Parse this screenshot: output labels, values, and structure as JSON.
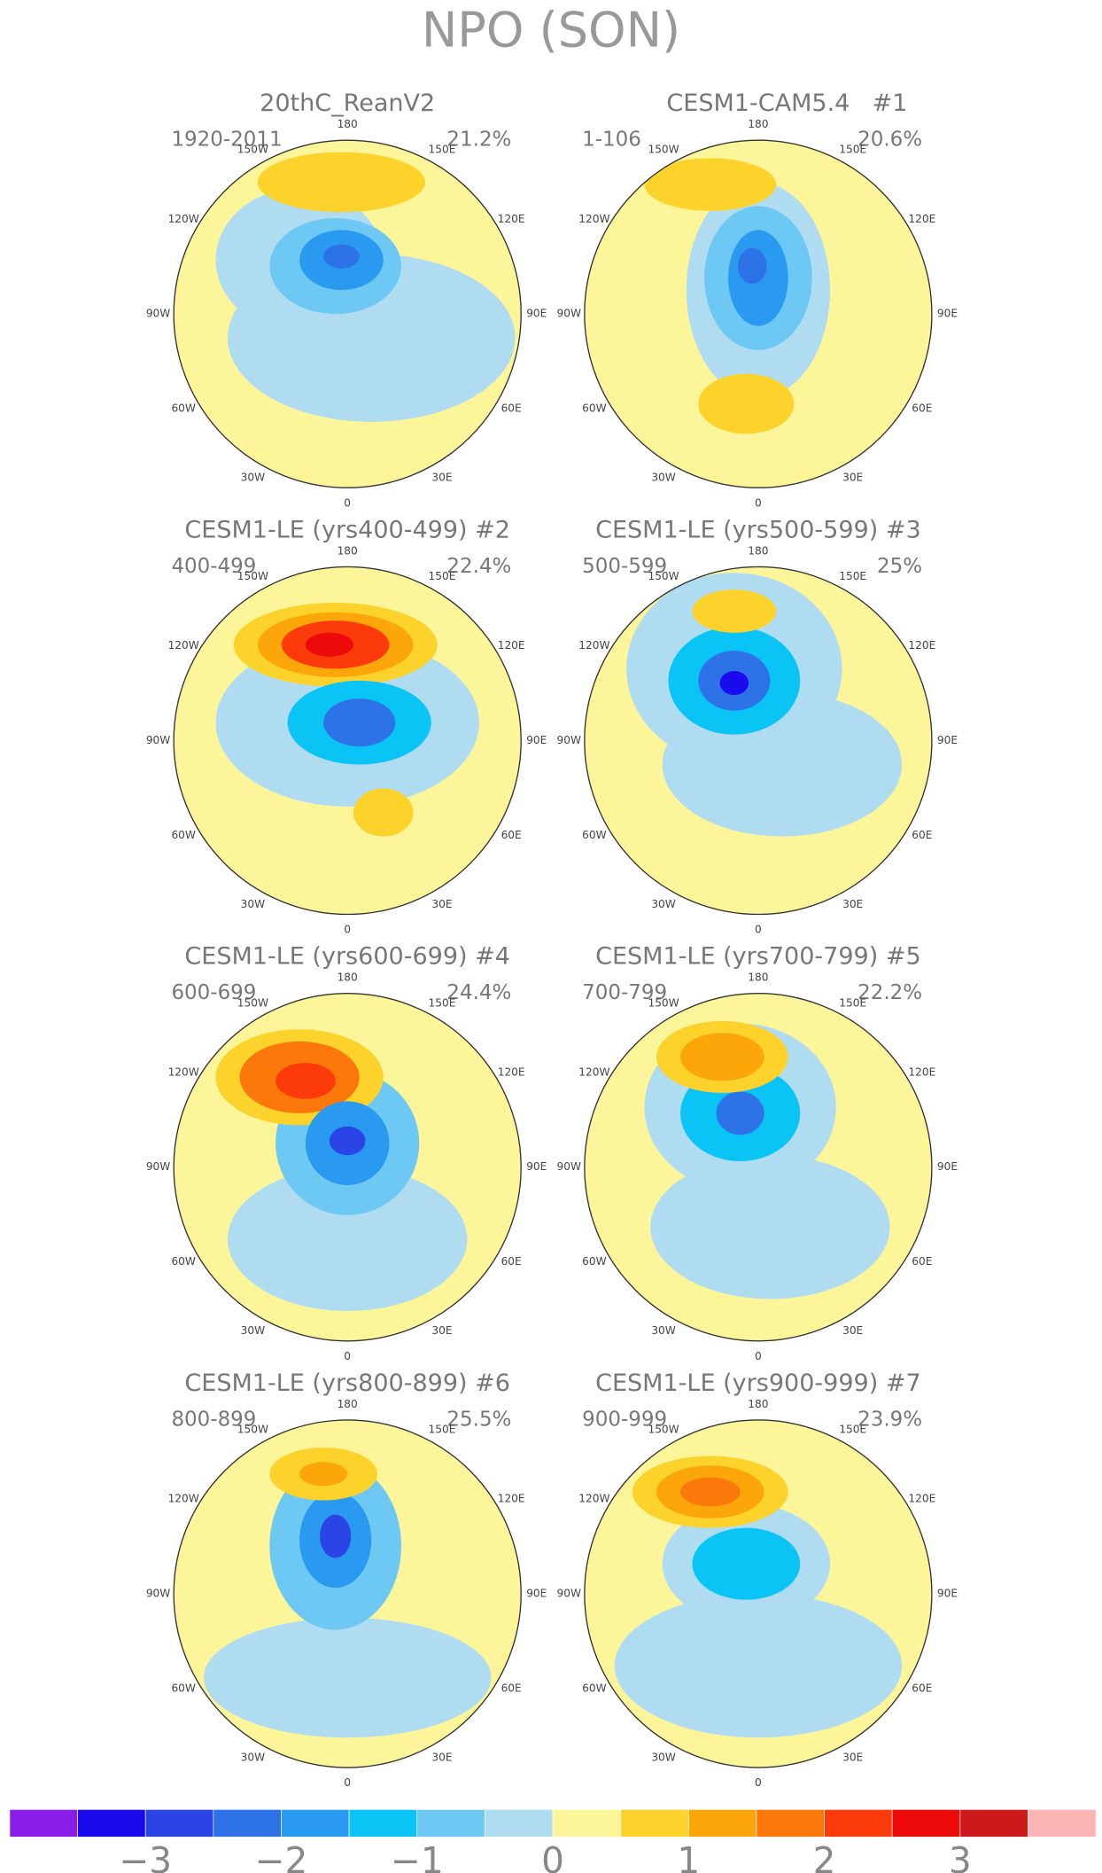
{
  "chart_data": {
    "type": "polar-map-panels",
    "title": "NPO (SON)",
    "panels": [
      {
        "title": "20thC_ReanV2",
        "period": "1920-2011",
        "variance": "21.2%"
      },
      {
        "title": "CESM1-CAM5.4",
        "label": "#1",
        "period": "1-106",
        "variance": "20.6%"
      },
      {
        "title": "CESM1-LE (yrs400-499) #2",
        "period": "400-499",
        "variance": "22.4%"
      },
      {
        "title": "CESM1-LE (yrs500-599) #3",
        "period": "500-599",
        "variance": "25%"
      },
      {
        "title": "CESM1-LE (yrs600-699) #4",
        "period": "600-699",
        "variance": "24.4%"
      },
      {
        "title": "CESM1-LE (yrs700-799) #5",
        "period": "700-799",
        "variance": "22.2%"
      },
      {
        "title": "CESM1-LE (yrs800-899) #6",
        "period": "800-899",
        "variance": "25.5%"
      },
      {
        "title": "CESM1-LE (yrs900-999) #7",
        "period": "900-999",
        "variance": "23.9%"
      }
    ],
    "longitude_labels": [
      "180",
      "150E",
      "120E",
      "90E",
      "60E",
      "30E",
      "0",
      "30W",
      "60W",
      "90W",
      "120W",
      "150W"
    ],
    "colorbar": {
      "clim": [
        -4,
        4
      ],
      "colors": [
        "#8a1ee8",
        "#1a0aee",
        "#2a44e6",
        "#2e72e8",
        "#2a9af0",
        "#0ac4f6",
        "#6ec8f4",
        "#b0dcf2",
        "#fdf59a",
        "#fdd22a",
        "#fca60a",
        "#fc780a",
        "#fc3a0a",
        "#ec0a0a",
        "#cc1a1a",
        "#fcb4b4"
      ],
      "ticks": [
        {
          "value": -3,
          "label": "−3"
        },
        {
          "value": -2,
          "label": "−2"
        },
        {
          "value": -1,
          "label": "−1"
        },
        0,
        1,
        2,
        3
      ]
    }
  }
}
